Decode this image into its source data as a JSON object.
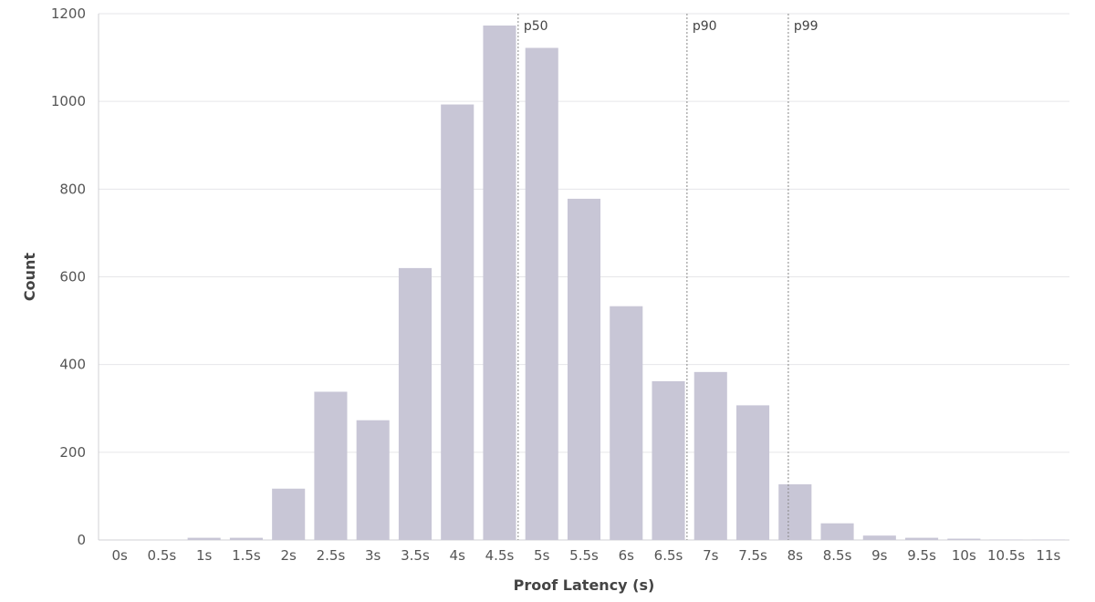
{
  "chart_data": {
    "type": "bar",
    "categories": [
      "0s",
      "0.5s",
      "1s",
      "1.5s",
      "2s",
      "2.5s",
      "3s",
      "3.5s",
      "4s",
      "4.5s",
      "5s",
      "5.5s",
      "6s",
      "6.5s",
      "7s",
      "7.5s",
      "8s",
      "8.5s",
      "9s",
      "9.5s",
      "10s",
      "10.5s",
      "11s"
    ],
    "values": [
      0,
      0,
      5,
      5,
      117,
      338,
      273,
      620,
      993,
      1173,
      1122,
      778,
      533,
      362,
      383,
      307,
      127,
      38,
      10,
      5,
      3,
      1,
      1
    ],
    "xlabel": "Proof Latency (s)",
    "ylabel": "Count",
    "ylim": [
      0,
      1200
    ],
    "yticks": [
      0,
      200,
      400,
      600,
      800,
      1000,
      1200
    ],
    "grid": true,
    "bar_color": "#c8c6d6",
    "percentile_lines": [
      {
        "label": "p50",
        "x": 4.72
      },
      {
        "label": "p90",
        "x": 6.72
      },
      {
        "label": "p99",
        "x": 7.92
      }
    ]
  }
}
